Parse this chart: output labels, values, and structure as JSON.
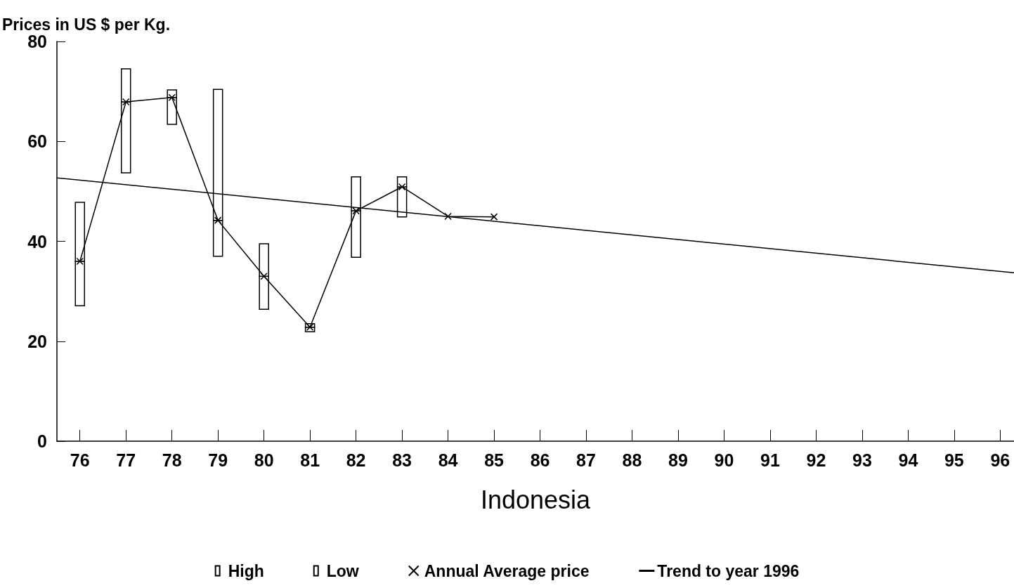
{
  "chart_data": {
    "type": "bar",
    "xlabel": "Indonesia",
    "ylabel": "Prices in US $ per Kg.",
    "x": [
      76,
      77,
      78,
      79,
      80,
      81,
      82,
      83,
      84,
      85
    ],
    "series": [
      {
        "name": "Low",
        "color": "#ffffff",
        "base": [
          27.1,
          53.7,
          63.4,
          37.0,
          26.4,
          21.9,
          36.8,
          44.9,
          null,
          null
        ],
        "values": [
          8.9,
          14.2,
          5.4,
          7.2,
          6.6,
          0.9,
          9.3,
          6.0,
          null,
          null
        ]
      },
      {
        "name": "High",
        "color": "#ffffff",
        "base": [
          36.0,
          67.9,
          68.8,
          44.2,
          33.0,
          22.8,
          46.1,
          50.9,
          null,
          null
        ],
        "values": [
          11.8,
          6.6,
          1.5,
          26.2,
          6.5,
          0.7,
          6.8,
          2.0,
          null,
          null
        ]
      },
      {
        "name": "Annual Average price",
        "type": "line",
        "color": "#000000",
        "marker": "cross",
        "values": [
          36.0,
          67.9,
          68.8,
          44.2,
          33.0,
          22.8,
          46.1,
          50.9,
          45.0,
          44.9
        ]
      },
      {
        "name": "Trend to year 1996",
        "type": "line",
        "color": "#000000",
        "marker": "none",
        "x": [
          75.5,
          96.3
        ],
        "values": [
          52.7,
          33.7
        ]
      }
    ],
    "xlim": [
      75.5,
      96.3
    ],
    "xticks": [
      76,
      77,
      78,
      79,
      80,
      81,
      82,
      83,
      84,
      85,
      86,
      87,
      88,
      89,
      90,
      91,
      92,
      93,
      94,
      95,
      96
    ],
    "ylim": [
      0,
      80
    ],
    "yticks": [
      0,
      20,
      40,
      60,
      80
    ],
    "grid": false,
    "legend": "bottom",
    "line_style": "solid"
  }
}
